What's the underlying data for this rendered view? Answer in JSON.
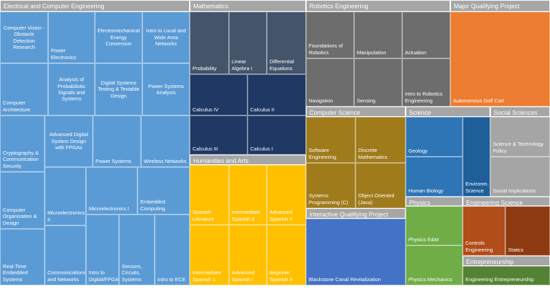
{
  "chart_data": {
    "type": "treemap",
    "groups": [
      {
        "name": "Electrical and Computer Engineering",
        "items": [
          "Computer Vision - Obstacle Detection Research",
          "Power Electronics",
          "Electromechanical Energy Conversion",
          "Intro to Local and Wide Area Networks",
          "Computer Architecture",
          "Analysis of Probabilistic Signals and Systems",
          "Digital Systems Testing & Testable Design",
          "Power Systems Analysis",
          "Cryptography & Communication Security",
          "Computer Organization & Design",
          "Real-Time Embedded Systems",
          "Advanced Digital System Design with FPGAs",
          "Power Systems",
          "Wireless Networks",
          "Microelectronics II",
          "Communications and Networks",
          "Microelectronics I",
          "Embedded Computing",
          "Intro to Digital/FPGA",
          "Sensors, Circuits, Systems",
          "Intro to ECE"
        ]
      },
      {
        "name": "Mathematics",
        "items": [
          "Probability",
          "Linear Algebra I",
          "Differential Equations",
          "Calculus IV",
          "Calculus II",
          "Calculus III",
          "Calculus I"
        ]
      },
      {
        "name": "Humanities and Arts",
        "items": [
          "Spanish Literature",
          "Intermediate Spanish 2",
          "Advanced Spanish II",
          "Intermediate Spanish 1",
          "Advanced Spanish I",
          "Beginner Spanish II"
        ]
      },
      {
        "name": "Robotics Engineering",
        "items": [
          "Foundations of Robotics",
          "Manipulation",
          "Actuation",
          "Navigation",
          "Sensing",
          "Intro to Robotics Engineering"
        ]
      },
      {
        "name": "Major Qualifying Project",
        "items": [
          "Autonomous Golf Cart"
        ]
      },
      {
        "name": "Computer Science",
        "items": [
          "Software Engineering",
          "Discrete Mathematics",
          "Systems Programming (C)",
          "Object Oriented (Java)"
        ]
      },
      {
        "name": "Interactive Qualifying Project",
        "items": [
          "Blackstone Canal Revitalization"
        ]
      },
      {
        "name": "Science",
        "items": [
          "Geology",
          "Human Biology",
          "Environm… Science"
        ]
      },
      {
        "name": "Social Sciences",
        "items": [
          "Science & Technology Policy",
          "Social Implications"
        ]
      },
      {
        "name": "Physics",
        "items": [
          "Physics E&M",
          "Physics Mechanics"
        ]
      },
      {
        "name": "Engineering Science",
        "items": [
          "Controls Engineering",
          "Statics"
        ]
      },
      {
        "name": "Entrepreneurship",
        "items": [
          "Engineering Entrepreneurship"
        ]
      }
    ]
  }
}
